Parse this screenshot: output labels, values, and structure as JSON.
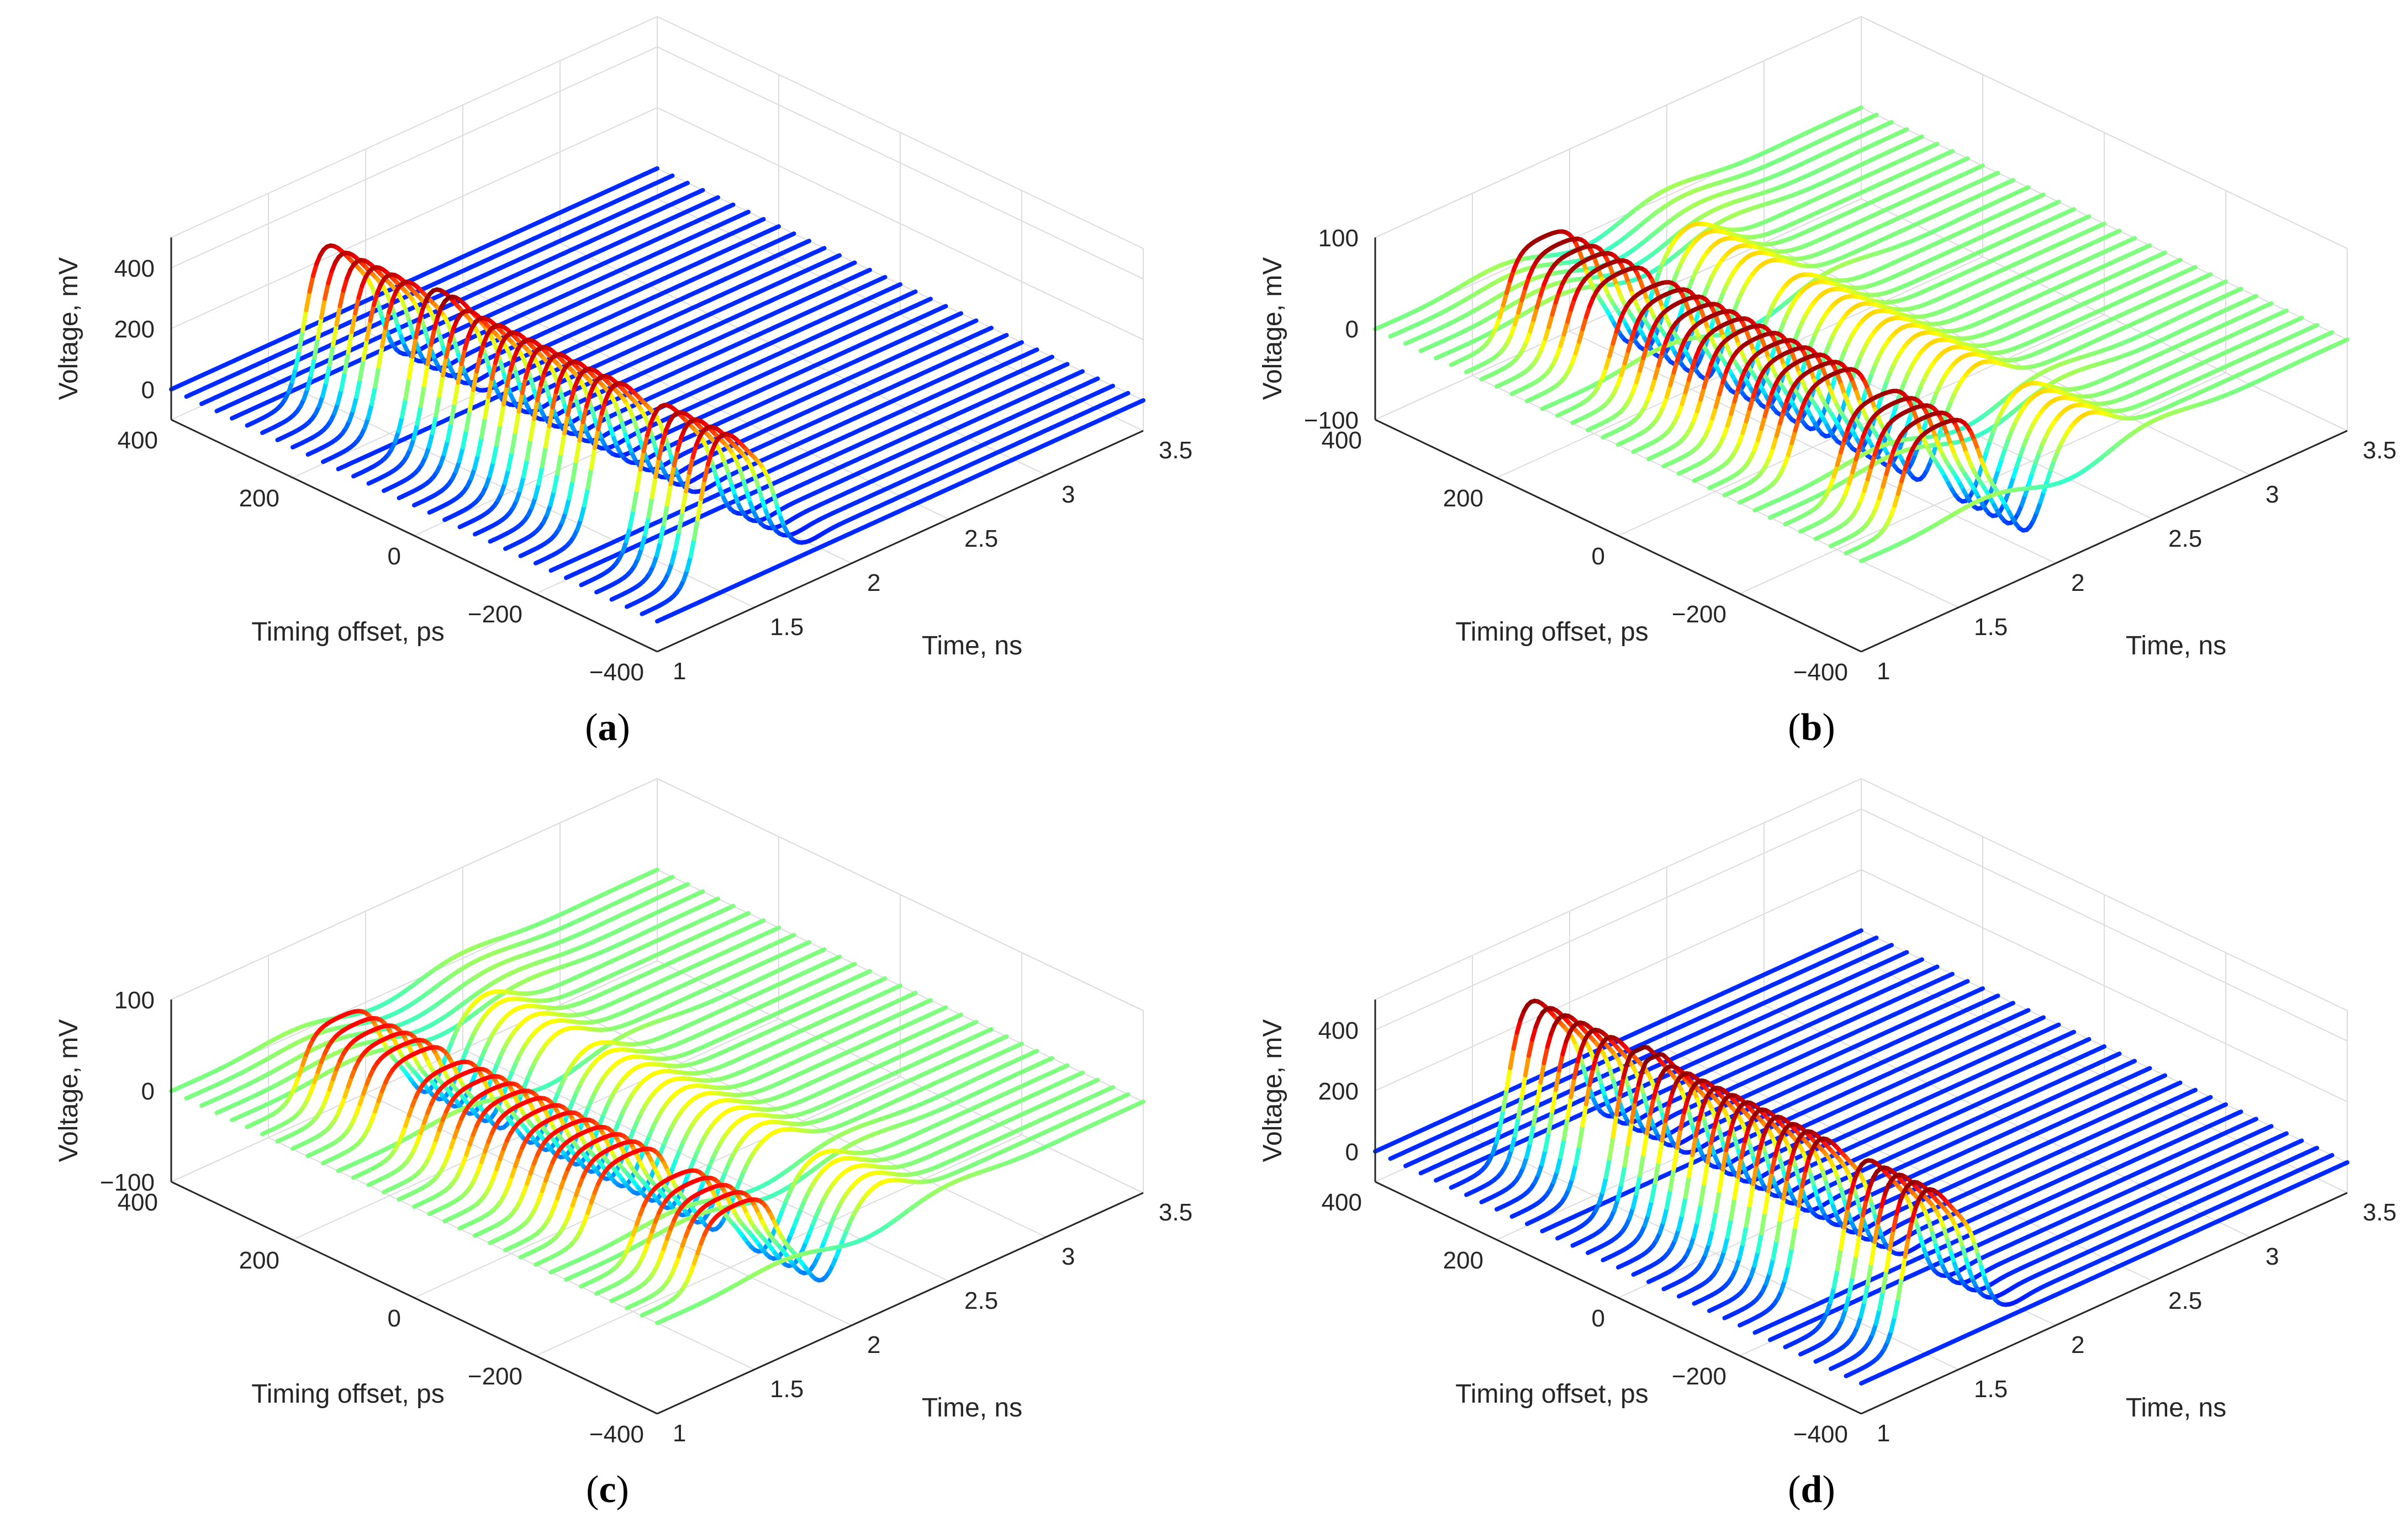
{
  "chart_data": [
    {
      "panel": "a",
      "type": "line",
      "subtype": "3d-waterfall",
      "caption": "a",
      "xlabel": "Timing offset, ps",
      "ylabel": "Time, ns",
      "zlabel": "Voltage, mV",
      "xlim": [
        -400,
        400
      ],
      "ylim": [
        1,
        3.5
      ],
      "zlim": [
        -100,
        500
      ],
      "xticks": [
        "400",
        "200",
        "0",
        "−200",
        "−400"
      ],
      "yticks": [
        "1",
        "1.5",
        "2",
        "2.5",
        "3",
        "3.5"
      ],
      "zticks": [
        "400",
        "200",
        "0"
      ],
      "offset_range_ps": [
        -400,
        400
      ],
      "trace_count": 33,
      "mode": "unipolar",
      "baseline_mV": 0,
      "pulse_start_ns": 1.28,
      "pulse_end_ns": 1.68,
      "peak_mV": 420,
      "overlap_offset_ps": 100,
      "overlap_peak_mV": 440,
      "colormap": "jet"
    },
    {
      "panel": "b",
      "type": "line",
      "subtype": "3d-waterfall",
      "caption": "b",
      "xlabel": "Timing offset, ps",
      "ylabel": "Time, ns",
      "zlabel": "Voltage, mV",
      "xlim": [
        -400,
        400
      ],
      "ylim": [
        1,
        3.5
      ],
      "zlim": [
        -100,
        100
      ],
      "xticks": [
        "400",
        "200",
        "0",
        "−200",
        "−400"
      ],
      "yticks": [
        "1",
        "1.5",
        "2",
        "2.5",
        "3",
        "3.5"
      ],
      "zticks": [
        "100",
        "0",
        "−100"
      ],
      "offset_range_ps": [
        -400,
        400
      ],
      "trace_count": 33,
      "mode": "bipolar",
      "baseline_mV": 0,
      "pulse_start_ns": 1.28,
      "pulse_end_ns": 1.68,
      "peak_mV": 95,
      "overlap_offset_ps": 100,
      "overlap_peak_mV": 100,
      "colormap": "jet"
    },
    {
      "panel": "c",
      "type": "line",
      "subtype": "3d-waterfall",
      "caption": "c",
      "xlabel": "Timing offset, ps",
      "ylabel": "Time, ns",
      "zlabel": "Voltage, mV",
      "xlim": [
        -400,
        400
      ],
      "ylim": [
        1,
        3.5
      ],
      "zlim": [
        -100,
        100
      ],
      "xticks": [
        "400",
        "200",
        "0",
        "−200",
        "−400"
      ],
      "yticks": [
        "1",
        "1.5",
        "2",
        "2.5",
        "3",
        "3.5"
      ],
      "zticks": [
        "100",
        "0",
        "−100"
      ],
      "offset_range_ps": [
        -400,
        400
      ],
      "trace_count": 33,
      "mode": "bipolar",
      "baseline_mV": 0,
      "pulse_start_ns": 1.28,
      "pulse_end_ns": 1.68,
      "peak_mV": 75,
      "overlap_offset_ps": 100,
      "overlap_peak_mV": 80,
      "colormap": "jet"
    },
    {
      "panel": "d",
      "type": "line",
      "subtype": "3d-waterfall",
      "caption": "d",
      "xlabel": "Timing offset, ps",
      "ylabel": "Time, ns",
      "zlabel": "Voltage, mV",
      "xlim": [
        -400,
        400
      ],
      "ylim": [
        1,
        3.5
      ],
      "zlim": [
        -100,
        500
      ],
      "xticks": [
        "400",
        "200",
        "0",
        "−200",
        "−400"
      ],
      "yticks": [
        "1",
        "1.5",
        "2",
        "2.5",
        "3",
        "3.5"
      ],
      "zticks": [
        "400",
        "200",
        "0"
      ],
      "offset_range_ps": [
        -400,
        400
      ],
      "trace_count": 33,
      "mode": "unipolar",
      "baseline_mV": 0,
      "pulse_start_ns": 1.28,
      "pulse_end_ns": 1.68,
      "peak_mV": 440,
      "overlap_offset_ps": 100,
      "overlap_peak_mV": 460,
      "colormap": "jet"
    }
  ]
}
